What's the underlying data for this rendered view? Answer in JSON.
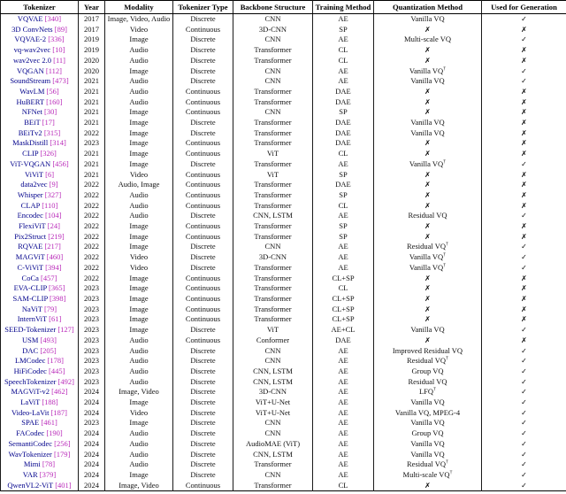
{
  "table": {
    "columns": [
      "Tokenizer",
      "Year",
      "Modality",
      "Tokenizer Type",
      "Backbone Structure",
      "Training Method",
      "Quantization Method",
      "Used for Generation"
    ],
    "glyphs": {
      "check": "✓",
      "cross": "✗",
      "dagger": "†"
    },
    "colors": {
      "tokenizer_name": "#00008B",
      "citation": "#B929B9",
      "text": "#111111",
      "mark": "#000000"
    },
    "rows": [
      {
        "name": "VQVAE",
        "cite": "[340]",
        "year": "2017",
        "modality": "Image, Video, Audio",
        "type": "Discrete",
        "backbone": "CNN",
        "training": "AE",
        "quant": "Vanilla VQ",
        "dagger": false,
        "gen": "✓"
      },
      {
        "name": "3D ConvNets",
        "cite": "[89]",
        "year": "2017",
        "modality": "Video",
        "type": "Continuous",
        "backbone": "3D-CNN",
        "training": "SP",
        "quant": "✗",
        "dagger": false,
        "gen": "✗"
      },
      {
        "name": "VQVAE-2",
        "cite": "[336]",
        "year": "2019",
        "modality": "Image",
        "type": "Discrete",
        "backbone": "CNN",
        "training": "AE",
        "quant": "Multi-scale VQ",
        "dagger": false,
        "gen": "✓"
      },
      {
        "name": "vq-wav2vec",
        "cite": "[10]",
        "year": "2019",
        "modality": "Audio",
        "type": "Discrete",
        "backbone": "Transformer",
        "training": "CL",
        "quant": "✗",
        "dagger": false,
        "gen": "✗"
      },
      {
        "name": "wav2vec 2.0",
        "cite": "[11]",
        "year": "2020",
        "modality": "Audio",
        "type": "Discrete",
        "backbone": "Transformer",
        "training": "CL",
        "quant": "✗",
        "dagger": false,
        "gen": "✗"
      },
      {
        "name": "VQGAN",
        "cite": "[112]",
        "year": "2020",
        "modality": "Image",
        "type": "Discrete",
        "backbone": "CNN",
        "training": "AE",
        "quant": "Vanilla VQ",
        "dagger": true,
        "gen": "✓"
      },
      {
        "name": "SoundStream",
        "cite": "[473]",
        "year": "2021",
        "modality": "Audio",
        "type": "Discrete",
        "backbone": "CNN",
        "training": "AE",
        "quant": "Vanilla VQ",
        "dagger": false,
        "gen": "✓"
      },
      {
        "name": "WavLM",
        "cite": "[56]",
        "year": "2021",
        "modality": "Audio",
        "type": "Continuous",
        "backbone": "Transformer",
        "training": "DAE",
        "quant": "✗",
        "dagger": false,
        "gen": "✗"
      },
      {
        "name": "HuBERT",
        "cite": "[160]",
        "year": "2021",
        "modality": "Audio",
        "type": "Continuous",
        "backbone": "Transformer",
        "training": "DAE",
        "quant": "✗",
        "dagger": false,
        "gen": "✗"
      },
      {
        "name": "NFNet",
        "cite": "[30]",
        "year": "2021",
        "modality": "Image",
        "type": "Continuous",
        "backbone": "CNN",
        "training": "SP",
        "quant": "✗",
        "dagger": false,
        "gen": "✗"
      },
      {
        "name": "BEiT",
        "cite": "[17]",
        "year": "2021",
        "modality": "Image",
        "type": "Discrete",
        "backbone": "Transformer",
        "training": "DAE",
        "quant": "Vanilla VQ",
        "dagger": false,
        "gen": "✗"
      },
      {
        "name": "BEiTv2",
        "cite": "[315]",
        "year": "2022",
        "modality": "Image",
        "type": "Discrete",
        "backbone": "Transformer",
        "training": "DAE",
        "quant": "Vanilla VQ",
        "dagger": false,
        "gen": "✗"
      },
      {
        "name": "MaskDistill",
        "cite": "[314]",
        "year": "2023",
        "modality": "Image",
        "type": "Continuous",
        "backbone": "Transformer",
        "training": "DAE",
        "quant": "✗",
        "dagger": false,
        "gen": "✗"
      },
      {
        "name": "CLIP",
        "cite": "[326]",
        "year": "2021",
        "modality": "Image",
        "type": "Continuous",
        "backbone": "ViT",
        "training": "CL",
        "quant": "✗",
        "dagger": false,
        "gen": "✗"
      },
      {
        "name": "ViT-VQGAN",
        "cite": "[456]",
        "year": "2021",
        "modality": "Image",
        "type": "Discrete",
        "backbone": "Transformer",
        "training": "AE",
        "quant": "Vanilla VQ",
        "dagger": true,
        "gen": "✓"
      },
      {
        "name": "ViViT",
        "cite": "[6]",
        "year": "2021",
        "modality": "Video",
        "type": "Continuous",
        "backbone": "ViT",
        "training": "SP",
        "quant": "✗",
        "dagger": false,
        "gen": "✗"
      },
      {
        "name": "data2vec",
        "cite": "[9]",
        "year": "2022",
        "modality": "Audio, Image",
        "type": "Continuous",
        "backbone": "Transformer",
        "training": "DAE",
        "quant": "✗",
        "dagger": false,
        "gen": "✗"
      },
      {
        "name": "Whisper",
        "cite": "[327]",
        "year": "2022",
        "modality": "Audio",
        "type": "Continuous",
        "backbone": "Transformer",
        "training": "SP",
        "quant": "✗",
        "dagger": false,
        "gen": "✗"
      },
      {
        "name": "CLAP",
        "cite": "[110]",
        "year": "2022",
        "modality": "Audio",
        "type": "Continuous",
        "backbone": "Transformer",
        "training": "CL",
        "quant": "✗",
        "dagger": false,
        "gen": "✗"
      },
      {
        "name": "Encodec",
        "cite": "[104]",
        "year": "2022",
        "modality": "Audio",
        "type": "Discrete",
        "backbone": "CNN, LSTM",
        "training": "AE",
        "quant": "Residual VQ",
        "dagger": false,
        "gen": "✓"
      },
      {
        "name": "FlexiViT",
        "cite": "[24]",
        "year": "2022",
        "modality": "Image",
        "type": "Continuous",
        "backbone": "Transformer",
        "training": "SP",
        "quant": "✗",
        "dagger": false,
        "gen": "✗"
      },
      {
        "name": "Pix2Struct",
        "cite": "[219]",
        "year": "2022",
        "modality": "Image",
        "type": "Continuous",
        "backbone": "Transformer",
        "training": "SP",
        "quant": "✗",
        "dagger": false,
        "gen": "✗"
      },
      {
        "name": "RQVAE",
        "cite": "[217]",
        "year": "2022",
        "modality": "Image",
        "type": "Discrete",
        "backbone": "CNN",
        "training": "AE",
        "quant": "Residual VQ",
        "dagger": true,
        "gen": "✓"
      },
      {
        "name": "MAGViT",
        "cite": "[460]",
        "year": "2022",
        "modality": "Video",
        "type": "Discrete",
        "backbone": "3D-CNN",
        "training": "AE",
        "quant": "Vanilla VQ",
        "dagger": true,
        "gen": "✓"
      },
      {
        "name": "C-ViViT",
        "cite": "[394]",
        "year": "2022",
        "modality": "Video",
        "type": "Discrete",
        "backbone": "Transformer",
        "training": "AE",
        "quant": "Vanilla VQ",
        "dagger": true,
        "gen": "✓"
      },
      {
        "name": "CoCa",
        "cite": "[457]",
        "year": "2022",
        "modality": "Image",
        "type": "Continuous",
        "backbone": "Transformer",
        "training": "CL+SP",
        "quant": "✗",
        "dagger": false,
        "gen": "✗"
      },
      {
        "name": "EVA-CLIP",
        "cite": "[365]",
        "year": "2023",
        "modality": "Image",
        "type": "Continuous",
        "backbone": "Transformer",
        "training": "CL",
        "quant": "✗",
        "dagger": false,
        "gen": "✗"
      },
      {
        "name": "SAM-CLIP",
        "cite": "[398]",
        "year": "2023",
        "modality": "Image",
        "type": "Continuous",
        "backbone": "Transformer",
        "training": "CL+SP",
        "quant": "✗",
        "dagger": false,
        "gen": "✗"
      },
      {
        "name": "NaViT",
        "cite": "[79]",
        "year": "2023",
        "modality": "Image",
        "type": "Continuous",
        "backbone": "Transformer",
        "training": "CL+SP",
        "quant": "✗",
        "dagger": false,
        "gen": "✗"
      },
      {
        "name": "InternViT",
        "cite": "[61]",
        "year": "2023",
        "modality": "Image",
        "type": "Continuous",
        "backbone": "Transformer",
        "training": "CL+SP",
        "quant": "✗",
        "dagger": false,
        "gen": "✗"
      },
      {
        "name": "SEED-Tokenizer",
        "cite": "[127]",
        "year": "2023",
        "modality": "Image",
        "type": "Discrete",
        "backbone": "ViT",
        "training": "AE+CL",
        "quant": "Vanilla VQ",
        "dagger": false,
        "gen": "✓"
      },
      {
        "name": "USM",
        "cite": "[493]",
        "year": "2023",
        "modality": "Audio",
        "type": "Continuous",
        "backbone": "Conformer",
        "training": "DAE",
        "quant": "✗",
        "dagger": false,
        "gen": "✗"
      },
      {
        "name": "DAC",
        "cite": "[205]",
        "year": "2023",
        "modality": "Audio",
        "type": "Discrete",
        "backbone": "CNN",
        "training": "AE",
        "quant": "Improved Residual VQ",
        "dagger": false,
        "gen": "✓"
      },
      {
        "name": "LMCodec",
        "cite": "[178]",
        "year": "2023",
        "modality": "Audio",
        "type": "Discrete",
        "backbone": "CNN",
        "training": "AE",
        "quant": "Residual VQ",
        "dagger": true,
        "gen": "✓"
      },
      {
        "name": "HiFiCodec",
        "cite": "[445]",
        "year": "2023",
        "modality": "Audio",
        "type": "Discrete",
        "backbone": "CNN, LSTM",
        "training": "AE",
        "quant": "Group VQ",
        "dagger": false,
        "gen": "✓"
      },
      {
        "name": "SpeechTokenizer",
        "cite": "[492]",
        "year": "2023",
        "modality": "Audio",
        "type": "Discrete",
        "backbone": "CNN, LSTM",
        "training": "AE",
        "quant": "Residual VQ",
        "dagger": false,
        "gen": "✓"
      },
      {
        "name": "MAGViT-v2",
        "cite": "[462]",
        "year": "2024",
        "modality": "Image, Video",
        "type": "Discrete",
        "backbone": "3D-CNN",
        "training": "AE",
        "quant": "LFQ",
        "dagger": true,
        "gen": "✓"
      },
      {
        "name": "LaViT",
        "cite": "[188]",
        "year": "2024",
        "modality": "Image",
        "type": "Discrete",
        "backbone": "ViT+U-Net",
        "training": "AE",
        "quant": "Vanilla VQ",
        "dagger": false,
        "gen": "✓"
      },
      {
        "name": "Video-LaVit",
        "cite": "[187]",
        "year": "2024",
        "modality": "Video",
        "type": "Discrete",
        "backbone": "ViT+U-Net",
        "training": "AE",
        "quant": "Vanilla VQ, MPEG-4",
        "dagger": false,
        "gen": "✓"
      },
      {
        "name": "SPAE",
        "cite": "[461]",
        "year": "2023",
        "modality": "Image",
        "type": "Discrete",
        "backbone": "CNN",
        "training": "AE",
        "quant": "Vanilla VQ",
        "dagger": false,
        "gen": "✓"
      },
      {
        "name": "FACodec",
        "cite": "[190]",
        "year": "2024",
        "modality": "Audio",
        "type": "Discrete",
        "backbone": "CNN",
        "training": "AE",
        "quant": "Group VQ",
        "dagger": false,
        "gen": "✓"
      },
      {
        "name": "SemantiCodec",
        "cite": "[256]",
        "year": "2024",
        "modality": "Audio",
        "type": "Discrete",
        "backbone": "AudioMAE (ViT)",
        "training": "AE",
        "quant": "Vanilla VQ",
        "dagger": false,
        "gen": "✓"
      },
      {
        "name": "WavTokenizer",
        "cite": "[179]",
        "year": "2024",
        "modality": "Audio",
        "type": "Discrete",
        "backbone": "CNN, LSTM",
        "training": "AE",
        "quant": "Vanilla VQ",
        "dagger": false,
        "gen": "✓"
      },
      {
        "name": "Mimi",
        "cite": "[78]",
        "year": "2024",
        "modality": "Audio",
        "type": "Discrete",
        "backbone": "Transformer",
        "training": "AE",
        "quant": "Residual VQ",
        "dagger": true,
        "gen": "✓"
      },
      {
        "name": "VAR",
        "cite": "[379]",
        "year": "2024",
        "modality": "Image",
        "type": "Discrete",
        "backbone": "CNN",
        "training": "AE",
        "quant": "Multi-scale VQ",
        "dagger": true,
        "gen": "✓"
      },
      {
        "name": "QwenVL2-ViT",
        "cite": "[401]",
        "year": "2024",
        "modality": "Image, Video",
        "type": "Continuous",
        "backbone": "Transformer",
        "training": "CL",
        "quant": "✗",
        "dagger": false,
        "gen": "✓"
      }
    ]
  }
}
